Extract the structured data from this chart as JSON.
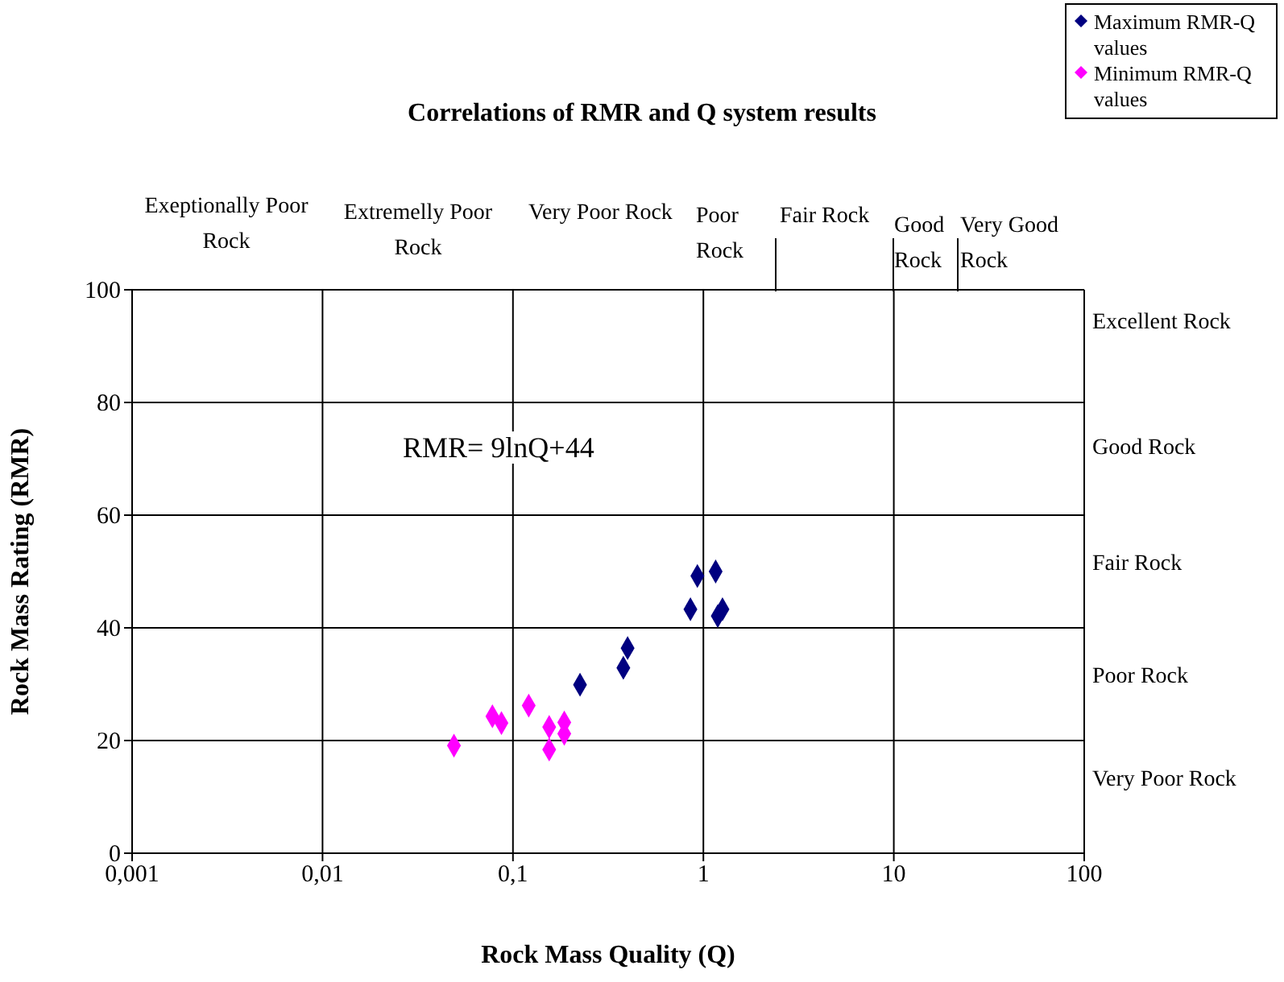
{
  "chart_data": {
    "type": "scatter",
    "title": "Correlations of RMR and Q system results",
    "xlabel": "Rock Mass Quality (Q)",
    "ylabel": "Rock Mass Rating (RMR)",
    "log": "x",
    "xlim": [
      0.001,
      100
    ],
    "xticks": [
      {
        "value": 0.001,
        "label": "0,001"
      },
      {
        "value": 0.01,
        "label": "0,01"
      },
      {
        "value": 0.1,
        "label": "0,1"
      },
      1,
      10,
      100
    ],
    "ylim": [
      0,
      100
    ],
    "yticks": [
      0,
      20,
      40,
      60,
      80,
      100
    ],
    "grid": true,
    "legend": "top right",
    "marker": "diamond",
    "series": [
      {
        "name": "Maximum RMR-Q values",
        "color": "#000080",
        "x": [
          0.93,
          1.16,
          0.855,
          1.26,
          1.19,
          0.4,
          0.38,
          0.225
        ],
        "values": [
          49.2,
          50,
          43.3,
          43.3,
          42.1,
          36.4,
          32.9,
          29.9
        ]
      },
      {
        "name": "Minimum RMR-Q values",
        "color": "#ff00ff",
        "x": [
          0.078,
          0.087,
          0.121,
          0.155,
          0.186,
          0.186,
          0.155,
          0.049
        ],
        "values": [
          24.3,
          23.1,
          26.2,
          22.4,
          23.2,
          21.2,
          18.4,
          19.1
        ]
      }
    ],
    "annotations": [
      "Exeptionally Poor Rock",
      "Extremelly Poor Rock",
      "Very Poor Rock",
      "Poor Rock",
      "Fair Rock",
      "Good Rock",
      "Very Good Rock",
      "Excellent Rock",
      "Good Rock",
      "Fair Rock",
      "Poor Rock",
      "Very Poor Rock",
      "RMR= 9lnQ+44"
    ]
  }
}
